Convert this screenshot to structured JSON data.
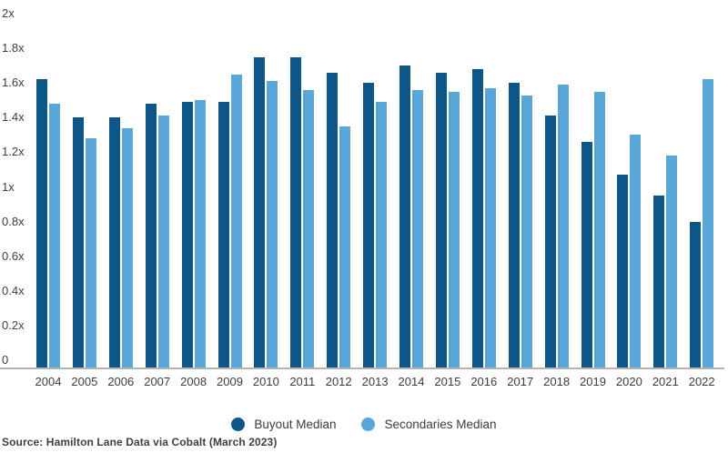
{
  "chart_data": {
    "type": "bar",
    "title": "",
    "xlabel": "",
    "ylabel": "",
    "categories": [
      "2004",
      "2005",
      "2006",
      "2007",
      "2008",
      "2009",
      "2010",
      "2011",
      "2012",
      "2013",
      "2014",
      "2015",
      "2016",
      "2017",
      "2018",
      "2019",
      "2020",
      "2021",
      "2022"
    ],
    "series": [
      {
        "name": "Buyout Median",
        "color": "#0e5687",
        "values": [
          1.62,
          1.4,
          1.4,
          1.48,
          1.49,
          1.49,
          1.75,
          1.75,
          1.66,
          1.6,
          1.7,
          1.66,
          1.68,
          1.6,
          1.41,
          1.26,
          1.07,
          0.95,
          0.8
        ]
      },
      {
        "name": "Secondaries Median",
        "color": "#59a7d8",
        "values": [
          1.48,
          1.28,
          1.34,
          1.41,
          1.5,
          1.65,
          1.61,
          1.56,
          1.35,
          1.49,
          1.56,
          1.55,
          1.57,
          1.53,
          1.59,
          1.55,
          1.3,
          1.18,
          1.62
        ]
      }
    ],
    "ylim": [
      0,
      2
    ],
    "ytick_step": 0.2,
    "yticks": [
      "2x",
      "1.8x",
      "1.6x",
      "1.4x",
      "1.2x",
      "1x",
      "0.8x",
      "0.6x",
      "0.4x",
      "0.2x",
      "0"
    ],
    "grid": false,
    "legend_position": "bottom"
  },
  "footer": {
    "source_text": "Source: Hamilton Lane Data via Cobalt (March 2023)"
  },
  "colors": {
    "buyout": "#0e5687",
    "secondaries": "#59a7d8",
    "axis_line": "#b3b3b3",
    "text": "#3d3d3d",
    "background": "#ffffff"
  }
}
